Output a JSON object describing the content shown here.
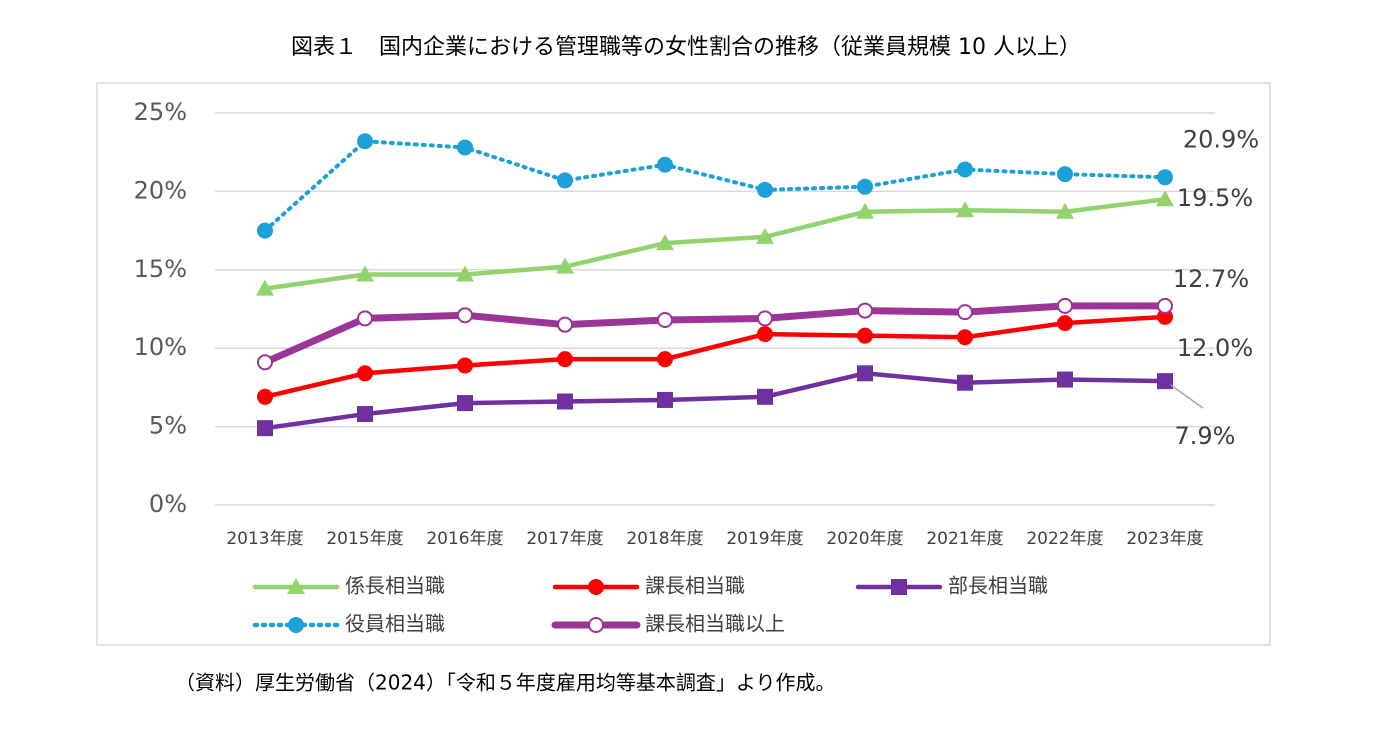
{
  "chart_data": {
    "type": "line",
    "title": "図表１　国内企業における管理職等の女性割合の推移（従業員規模 10 人以上）",
    "note": "（資料）厚生労働省（2024）「令和５年度雇用均等基本調査」より作成。",
    "categories": [
      "2013年度",
      "2015年度",
      "2016年度",
      "2017年度",
      "2018年度",
      "2019年度",
      "2020年度",
      "2021年度",
      "2022年度",
      "2023年度"
    ],
    "ylim": [
      0,
      25
    ],
    "yticks": [
      {
        "value": 0,
        "label": "0%"
      },
      {
        "value": 5,
        "label": "5%"
      },
      {
        "value": 10,
        "label": "10%"
      },
      {
        "value": 15,
        "label": "15%"
      },
      {
        "value": 20,
        "label": "20%"
      },
      {
        "value": 25,
        "label": "25%"
      }
    ],
    "grid": true,
    "legend": "bottom",
    "series": [
      {
        "name": "係長相当職",
        "color": "#92d36e",
        "marker": "triangle",
        "dash": "solid",
        "values": [
          13.8,
          14.7,
          14.7,
          15.2,
          16.7,
          17.1,
          18.7,
          18.8,
          18.7,
          19.5
        ],
        "value_labels": [
          null,
          null,
          null,
          null,
          null,
          null,
          null,
          null,
          null,
          "19.5%"
        ]
      },
      {
        "name": "課長相当職",
        "color": "#ff0000",
        "marker": "circle",
        "dash": "solid",
        "values": [
          6.9,
          8.4,
          8.9,
          9.3,
          9.3,
          10.9,
          10.8,
          10.7,
          11.6,
          12.0
        ],
        "value_labels": [
          null,
          null,
          null,
          null,
          null,
          null,
          null,
          null,
          null,
          "12.0%"
        ]
      },
      {
        "name": "部長相当職",
        "color": "#7030a0",
        "marker": "square",
        "dash": "solid",
        "values": [
          4.9,
          5.8,
          6.5,
          6.6,
          6.7,
          6.9,
          8.4,
          7.8,
          8.0,
          7.9
        ],
        "value_labels": [
          null,
          null,
          null,
          null,
          null,
          null,
          null,
          null,
          null,
          "7.9%"
        ]
      },
      {
        "name": "役員相当職",
        "color": "#1ca0d8",
        "marker": "circle",
        "dash": "dotted",
        "values": [
          17.5,
          23.2,
          22.8,
          20.7,
          21.7,
          20.1,
          20.3,
          21.4,
          21.1,
          20.9
        ],
        "value_labels": [
          null,
          null,
          null,
          null,
          null,
          null,
          null,
          null,
          null,
          "20.9%"
        ]
      },
      {
        "name": "課長相当職以上",
        "color": "#9b3598",
        "marker": "circle-open",
        "dash": "solid",
        "values": [
          9.1,
          11.9,
          12.1,
          11.5,
          11.8,
          11.9,
          12.4,
          12.3,
          12.7,
          12.7
        ],
        "value_labels": [
          null,
          null,
          null,
          null,
          null,
          null,
          null,
          null,
          null,
          "12.7%"
        ]
      }
    ]
  }
}
